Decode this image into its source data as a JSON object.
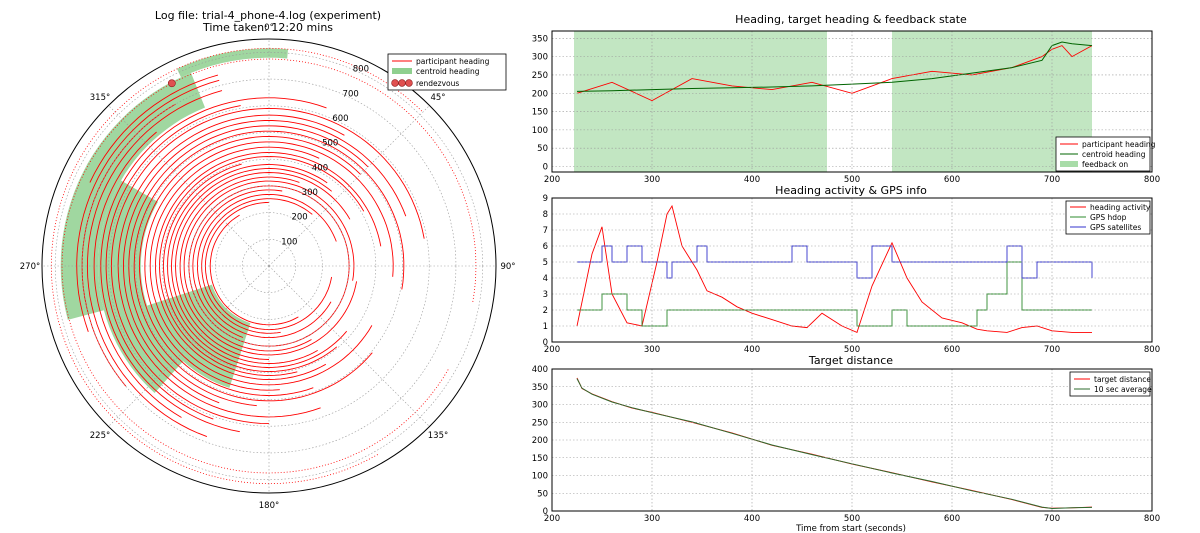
{
  "chart_data": [
    {
      "id": "polar",
      "type": "scatter",
      "title": "Log file: trial-4_phone-4.log (experiment)",
      "subtitle": "Time taken: 12:20 mins",
      "angle_labels": [
        "0°",
        "45°",
        "90°",
        "135°",
        "180°",
        "225°",
        "270°",
        "315°"
      ],
      "radial_labels": [
        "100",
        "200",
        "300",
        "400",
        "500",
        "600",
        "700",
        "800"
      ],
      "rmax": 850,
      "legend": {
        "loc": "upper right",
        "entries": [
          "participant heading",
          "centroid heading",
          "rendezvous"
        ]
      },
      "colors": {
        "participant": "#ff0000",
        "centroid": "#228b22",
        "rendezvous": "#e05050"
      },
      "series": [
        {
          "name": "participant heading",
          "segments": [
            {
              "r": 220,
              "from": 150,
              "to": 330
            },
            {
              "r": 238,
              "from": 100,
              "to": 360
            },
            {
              "r": 252,
              "from": 170,
              "to": 400
            },
            {
              "r": 268,
              "from": 120,
              "to": 430
            },
            {
              "r": 285,
              "from": 200,
              "to": 370
            },
            {
              "r": 300,
              "from": 110,
              "to": 470
            },
            {
              "r": 318,
              "from": 150,
              "to": 460
            },
            {
              "r": 333,
              "from": 100,
              "to": 380
            },
            {
              "r": 350,
              "from": 180,
              "to": 420
            },
            {
              "r": 365,
              "from": 150,
              "to": 400
            },
            {
              "r": 380,
              "from": 130,
              "to": 395
            },
            {
              "r": 395,
              "from": 140,
              "to": 345
            },
            {
              "r": 410,
              "from": 165,
              "to": 420
            },
            {
              "r": 425,
              "from": 150,
              "to": 440
            },
            {
              "r": 445,
              "from": 120,
              "to": 385
            },
            {
              "r": 465,
              "from": 175,
              "to": 455
            },
            {
              "r": 485,
              "from": 160,
              "to": 405
            },
            {
              "r": 505,
              "from": 130,
              "to": 460
            },
            {
              "r": 525,
              "from": 185,
              "to": 405
            },
            {
              "r": 545,
              "from": 200,
              "to": 430
            },
            {
              "r": 565,
              "from": 160,
              "to": 390
            },
            {
              "r": 590,
              "from": 180,
              "to": 440
            },
            {
              "r": 610,
              "from": 200,
              "to": 350
            },
            {
              "r": 630,
              "from": 190,
              "to": 380
            },
            {
              "r": 655,
              "from": 210,
              "to": 320
            },
            {
              "r": 680,
              "from": 200,
              "to": 345
            },
            {
              "r": 700,
              "from": 230,
              "to": 330
            },
            {
              "r": 720,
              "from": 250,
              "to": 345
            },
            {
              "r": 740,
              "from": 295,
              "to": 345
            }
          ],
          "dotted": [
            {
              "r": 775,
              "from": 120,
              "to": 460
            },
            {
              "r": 815,
              "from": 150,
              "to": 405
            }
          ]
        },
        {
          "name": "centroid heading",
          "bands": [
            {
              "r0": 225,
              "r1": 480,
              "from": 198,
              "to": 252
            },
            {
              "r0": 480,
              "r1": 640,
              "from": 222,
              "to": 300
            },
            {
              "r0": 640,
              "r1": 780,
              "from": 255,
              "to": 338
            },
            {
              "r0": 780,
              "r1": 815,
              "from": 335,
              "to": 365
            }
          ]
        },
        {
          "name": "rendezvous",
          "points": [
            {
              "r": 775,
              "theta": 332
            }
          ]
        }
      ]
    },
    {
      "id": "heading",
      "type": "line",
      "title": "Heading, target heading & feedback state",
      "xlabel": "",
      "ylabel": "",
      "xlim": [
        200,
        800
      ],
      "ylim": [
        -15,
        370
      ],
      "xticks": [
        "200",
        "300",
        "400",
        "500",
        "600",
        "700",
        "800"
      ],
      "yticks": [
        "0",
        "50",
        "100",
        "150",
        "200",
        "250",
        "300",
        "350"
      ],
      "legend": {
        "loc": "lower right",
        "entries": [
          "participant heading",
          "centroid heading",
          "feedback on"
        ]
      },
      "colors": {
        "participant": "#ff0000",
        "centroid": "#006400",
        "feedback": "#90d090"
      },
      "x": [
        225,
        260,
        300,
        340,
        380,
        420,
        460,
        500,
        540,
        580,
        620,
        660,
        690,
        700,
        710,
        720,
        740
      ],
      "series": [
        {
          "name": "centroid heading",
          "values": [
            205,
            207,
            210,
            213,
            215,
            217,
            220,
            225,
            230,
            240,
            255,
            270,
            290,
            330,
            340,
            335,
            330
          ]
        },
        {
          "name": "participant heading",
          "values": [
            200,
            230,
            180,
            240,
            220,
            210,
            230,
            200,
            240,
            260,
            250,
            270,
            300,
            320,
            330,
            300,
            330
          ]
        },
        {
          "name": "feedback on",
          "spans": [
            [
              222,
              475
            ],
            [
              540,
              740
            ]
          ]
        }
      ]
    },
    {
      "id": "activity",
      "type": "line",
      "title": "Heading activity & GPS info",
      "xlabel": "",
      "ylabel": "",
      "xlim": [
        200,
        800
      ],
      "ylim": [
        0,
        9
      ],
      "xticks": [
        "200",
        "300",
        "400",
        "500",
        "600",
        "700",
        "800"
      ],
      "yticks": [
        "0",
        "1",
        "2",
        "3",
        "4",
        "5",
        "6",
        "7",
        "8",
        "9"
      ],
      "legend": {
        "loc": "upper right",
        "entries": [
          "heading activity",
          "GPS hdop",
          "GPS satellites"
        ]
      },
      "colors": {
        "activity": "#ff0000",
        "hdop": "#2e8b2e",
        "satellites": "#3333cc"
      },
      "x": [
        225,
        240,
        250,
        260,
        275,
        290,
        305,
        315,
        320,
        330,
        345,
        355,
        370,
        385,
        400,
        420,
        440,
        455,
        470,
        490,
        505,
        520,
        540,
        555,
        570,
        590,
        610,
        625,
        635,
        655,
        670,
        685,
        700,
        720,
        740
      ],
      "series": [
        {
          "name": "heading activity",
          "values": [
            1.0,
            5.5,
            7.2,
            3.0,
            1.2,
            1.0,
            5.0,
            8.0,
            8.5,
            6.0,
            4.5,
            3.2,
            2.8,
            2.2,
            1.8,
            1.4,
            1.0,
            0.9,
            1.8,
            1.0,
            0.6,
            3.5,
            6.2,
            4.0,
            2.5,
            1.5,
            1.2,
            0.8,
            0.7,
            0.6,
            0.9,
            1.0,
            0.7,
            0.6,
            0.6
          ]
        },
        {
          "name": "GPS hdop",
          "values": [
            2,
            2,
            3,
            3,
            2,
            1,
            1,
            2,
            2,
            2,
            2,
            2,
            2,
            2,
            2,
            2,
            2,
            2,
            2,
            2,
            1,
            1,
            2,
            1,
            1,
            1,
            1,
            2,
            3,
            5,
            2,
            2,
            2,
            2,
            2
          ]
        },
        {
          "name": "GPS satellites",
          "values": [
            5,
            5,
            6,
            5,
            6,
            5,
            5,
            4,
            5,
            5,
            6,
            5,
            5,
            5,
            5,
            5,
            6,
            5,
            5,
            5,
            4,
            6,
            5,
            5,
            5,
            5,
            5,
            5,
            5,
            6,
            4,
            5,
            5,
            5,
            4
          ]
        }
      ]
    },
    {
      "id": "distance",
      "type": "line",
      "title": "Target distance",
      "xlabel": "Time from start (seconds)",
      "ylabel": "",
      "xlim": [
        200,
        800
      ],
      "ylim": [
        0,
        400
      ],
      "xticks": [
        "200",
        "300",
        "400",
        "500",
        "600",
        "700",
        "800"
      ],
      "yticks": [
        "0",
        "50",
        "100",
        "150",
        "200",
        "250",
        "300",
        "350",
        "400"
      ],
      "legend": {
        "loc": "upper right",
        "entries": [
          "target distance",
          "10 sec average"
        ]
      },
      "colors": {
        "distance": "#ff0000",
        "average": "#2e6b2e"
      },
      "x": [
        225,
        230,
        240,
        260,
        280,
        300,
        340,
        380,
        420,
        460,
        500,
        540,
        580,
        620,
        660,
        690,
        700,
        720,
        740
      ],
      "series": [
        {
          "name": "target distance",
          "values": [
            375,
            345,
            330,
            308,
            290,
            278,
            250,
            220,
            185,
            160,
            132,
            108,
            82,
            58,
            32,
            10,
            8,
            9,
            11
          ]
        },
        {
          "name": "10 sec average",
          "values": [
            373,
            346,
            329,
            307,
            291,
            277,
            251,
            219,
            186,
            159,
            133,
            107,
            83,
            57,
            33,
            11,
            7,
            9,
            10
          ]
        }
      ]
    }
  ]
}
